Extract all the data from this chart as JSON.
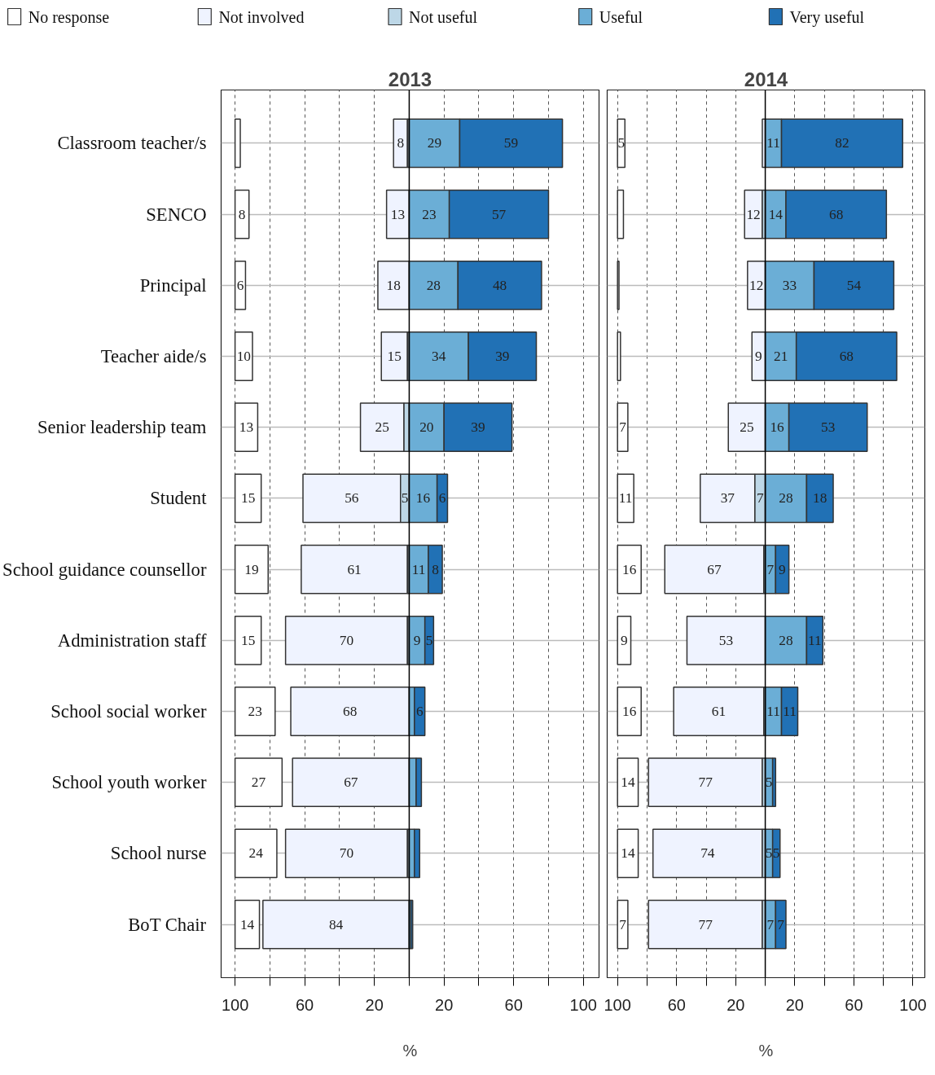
{
  "chart_data": [
    {
      "type": "bar",
      "orientation": "horizontal",
      "title": "2013",
      "xlabel": "%",
      "categories": [
        "Classroom teacher/s",
        "SENCO",
        "Principal",
        "Teacher aide/s",
        "Senior leadership team",
        "Student",
        "School guidance counsellor",
        "Administration staff",
        "School social worker",
        "School youth worker",
        "School nurse",
        "BoT Chair"
      ],
      "series": [
        {
          "name": "No response",
          "color": "#ffffff",
          "values": [
            3,
            8,
            6,
            10,
            13,
            15,
            19,
            15,
            23,
            27,
            24,
            14
          ],
          "base": [
            -100,
            -100,
            -100,
            -100,
            -100,
            -100,
            -100,
            -100,
            -100,
            -100,
            -100,
            -100
          ],
          "value_labels": [
            null,
            "8",
            "6",
            "10",
            "13",
            "15",
            "19",
            "15",
            "23",
            "27",
            "24",
            "14"
          ]
        },
        {
          "name": "Not involved",
          "color": "#eff3ff",
          "values": [
            8,
            13,
            18,
            15,
            25,
            56,
            61,
            70,
            68,
            67,
            70,
            84
          ],
          "base": [
            -9,
            -13,
            -18,
            -16,
            -28,
            -61,
            -62,
            -71,
            -68,
            -67,
            -71,
            -84
          ],
          "value_labels": [
            "8",
            "13",
            "18",
            "15",
            "25",
            "56",
            "61",
            "70",
            "68",
            "67",
            "70",
            "84"
          ]
        },
        {
          "name": "Not useful",
          "color": "#bdd7e7",
          "values": [
            1,
            null,
            null,
            1,
            3,
            5,
            1,
            1,
            null,
            null,
            1,
            null
          ],
          "base": [
            -1,
            null,
            null,
            -1,
            -3,
            -5,
            -1,
            -1,
            null,
            null,
            -1,
            null
          ],
          "value_labels": [
            null,
            null,
            null,
            null,
            null,
            "5",
            null,
            null,
            null,
            null,
            null,
            null
          ]
        },
        {
          "name": "Useful",
          "color": "#6baed6",
          "values": [
            29,
            23,
            28,
            34,
            20,
            16,
            11,
            9,
            3,
            4,
            3,
            1
          ],
          "base": [
            0,
            0,
            0,
            0,
            0,
            0,
            0,
            0,
            0,
            0,
            0,
            0
          ],
          "value_labels": [
            "29",
            "23",
            "28",
            "34",
            "20",
            "16",
            "11",
            "9",
            null,
            null,
            null,
            null
          ]
        },
        {
          "name": "Very useful",
          "color": "#2171b5",
          "values": [
            59,
            57,
            48,
            39,
            39,
            6,
            8,
            5,
            6,
            3,
            3,
            1
          ],
          "base": [
            29,
            23,
            28,
            34,
            20,
            16,
            11,
            9,
            3,
            4,
            3,
            1
          ],
          "value_labels": [
            "59",
            "57",
            "48",
            "39",
            "39",
            "6",
            "8",
            "5",
            "6",
            null,
            null,
            null
          ]
        }
      ],
      "xlim": [
        -108,
        109
      ],
      "xticks": [
        {
          "value": -100,
          "label": "100"
        },
        {
          "value": -80,
          "label": null
        },
        {
          "value": -60,
          "label": "60"
        },
        {
          "value": -40,
          "label": null
        },
        {
          "value": -20,
          "label": "20"
        },
        {
          "value": 0,
          "label": null
        },
        {
          "value": 20,
          "label": "20"
        },
        {
          "value": 40,
          "label": null
        },
        {
          "value": 60,
          "label": "60"
        },
        {
          "value": 80,
          "label": null
        },
        {
          "value": 100,
          "label": "100"
        }
      ],
      "ref_lines": [
        {
          "axis": "x",
          "value": 0,
          "color": "#000000",
          "line_style": "solid"
        }
      ],
      "grid": true,
      "legend": "top"
    },
    {
      "type": "bar",
      "orientation": "horizontal",
      "title": "2014",
      "xlabel": "%",
      "categories": [
        null,
        null,
        null,
        null,
        null,
        null,
        null,
        null,
        null,
        null,
        null,
        null
      ],
      "series": [
        {
          "color": "#ffffff",
          "values": [
            5,
            4,
            1,
            2,
            7,
            11,
            16,
            9,
            16,
            14,
            14,
            7
          ],
          "base": [
            -100,
            -100,
            -100,
            -100,
            -100,
            -100,
            -100,
            -100,
            -100,
            -100,
            -100,
            -100
          ],
          "value_labels": [
            "5",
            null,
            null,
            null,
            "7",
            "11",
            "16",
            "9",
            "16",
            "14",
            "14",
            "7"
          ]
        },
        {
          "color": "#eff3ff",
          "values": [
            2,
            12,
            12,
            9,
            25,
            37,
            67,
            53,
            61,
            77,
            74,
            77
          ],
          "base": [
            -2,
            -14,
            -12,
            -9,
            -25,
            -44,
            -68,
            -53,
            -62,
            -79,
            -76,
            -79
          ],
          "value_labels": [
            null,
            "12",
            "12",
            "9",
            "25",
            "37",
            "67",
            "53",
            "61",
            "77",
            "74",
            "77"
          ]
        },
        {
          "color": "#bdd7e7",
          "values": [
            null,
            2,
            null,
            null,
            null,
            7,
            1,
            null,
            1,
            2,
            2,
            2
          ],
          "base": [
            null,
            -2,
            null,
            null,
            null,
            -7,
            -1,
            null,
            -1,
            -2,
            -2,
            -2
          ],
          "value_labels": [
            null,
            null,
            null,
            null,
            null,
            "7",
            null,
            null,
            null,
            null,
            null,
            null
          ]
        },
        {
          "color": "#6baed6",
          "values": [
            11,
            14,
            33,
            21,
            16,
            28,
            7,
            28,
            11,
            5,
            5,
            7
          ],
          "base": [
            0,
            0,
            0,
            0,
            0,
            0,
            0,
            0,
            0,
            0,
            0,
            0
          ],
          "value_labels": [
            "11",
            "14",
            "33",
            "21",
            "16",
            "28",
            "7",
            "28",
            "11",
            "5",
            "5",
            "7"
          ]
        },
        {
          "color": "#2171b5",
          "values": [
            82,
            68,
            54,
            68,
            53,
            18,
            9,
            11,
            11,
            2,
            5,
            7
          ],
          "base": [
            11,
            14,
            33,
            21,
            16,
            28,
            7,
            28,
            11,
            5,
            5,
            7
          ],
          "value_labels": [
            "82",
            "68",
            "54",
            "68",
            "53",
            "18",
            "9",
            "11",
            "11",
            null,
            "5",
            "7"
          ]
        }
      ],
      "xlim": [
        -107,
        108
      ],
      "xticks": [
        {
          "value": -100,
          "label": "100"
        },
        {
          "value": -80,
          "label": null
        },
        {
          "value": -60,
          "label": "60"
        },
        {
          "value": -40,
          "label": null
        },
        {
          "value": -20,
          "label": "20"
        },
        {
          "value": 0,
          "label": null
        },
        {
          "value": 20,
          "label": "20"
        },
        {
          "value": 40,
          "label": null
        },
        {
          "value": 60,
          "label": "60"
        },
        {
          "value": 80,
          "label": null
        },
        {
          "value": 100,
          "label": "100"
        }
      ],
      "ref_lines": [
        {
          "axis": "x",
          "value": 0,
          "color": "#000000",
          "line_style": "solid"
        }
      ],
      "grid": true,
      "tick_labels": "x"
    }
  ]
}
